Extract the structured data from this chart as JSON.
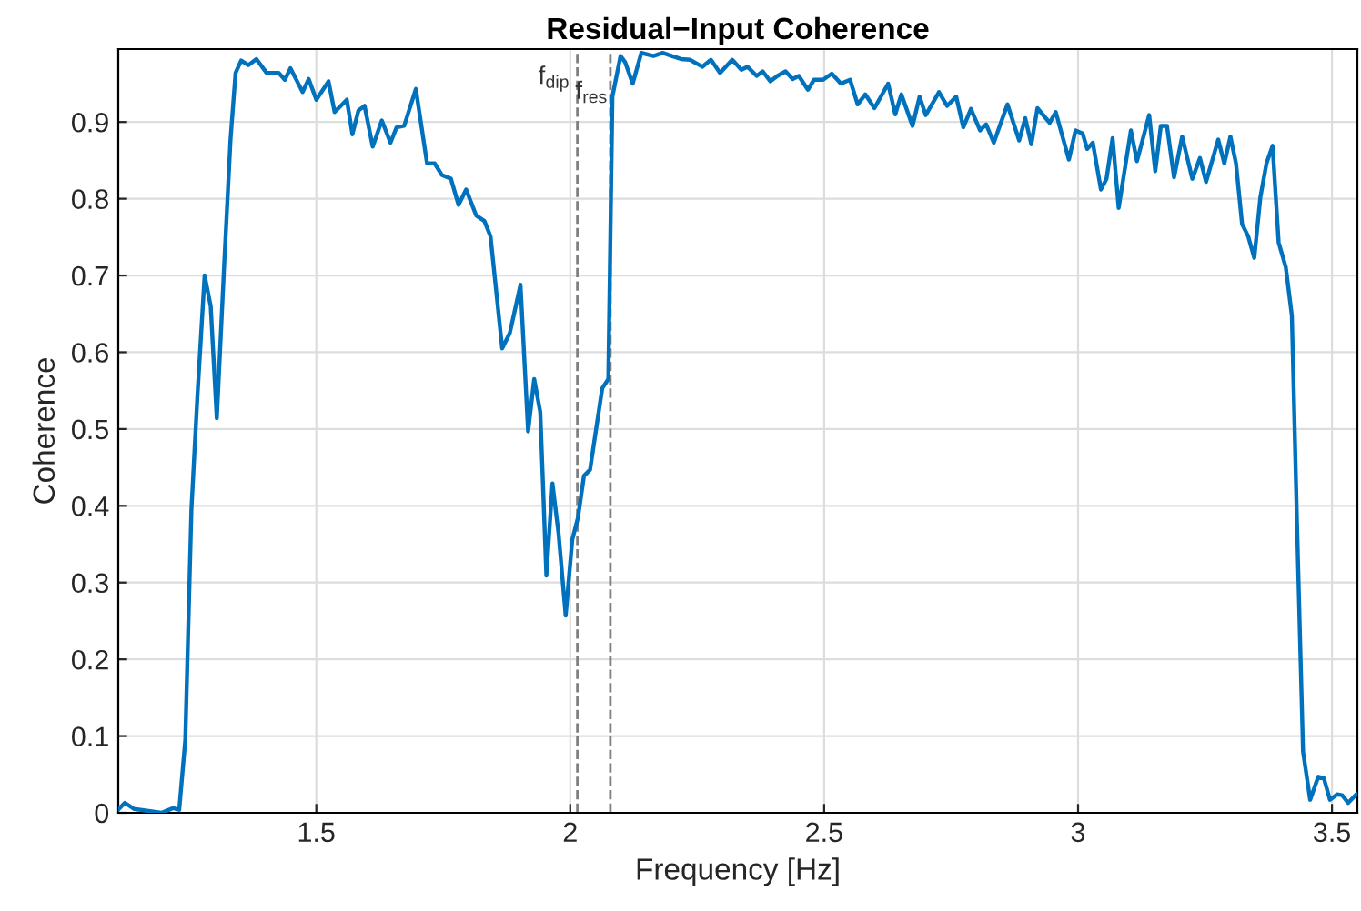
{
  "chart_data": {
    "type": "line",
    "title": "Residual−Input Coherence",
    "xlabel": "Frequency [Hz]",
    "ylabel": "Coherence",
    "xlim": [
      1.11,
      3.55
    ],
    "ylim": [
      0,
      0.995
    ],
    "xticks": [
      1.5,
      2,
      2.5,
      3,
      3.5
    ],
    "yticks": [
      0,
      0.1,
      0.2,
      0.3,
      0.4,
      0.5,
      0.6,
      0.7,
      0.8,
      0.9
    ],
    "grid": true,
    "line_style": "solid",
    "marker": "none",
    "ref_lines": [
      {
        "axis": "x",
        "value": 2.014,
        "label": "f$_{dip}$",
        "color": "#808080",
        "line_style": "dashed"
      },
      {
        "axis": "x",
        "value": 2.079,
        "label": "f$_{res}$",
        "color": "#808080",
        "line_style": "dashed"
      }
    ],
    "series": [
      {
        "color": "#0072bd",
        "x": [
          1.111,
          1.123,
          1.141,
          1.195,
          1.218,
          1.23,
          1.242,
          1.254,
          1.266,
          1.28,
          1.292,
          1.304,
          1.319,
          1.331,
          1.341,
          1.352,
          1.366,
          1.382,
          1.402,
          1.426,
          1.438,
          1.449,
          1.473,
          1.485,
          1.5,
          1.524,
          1.536,
          1.56,
          1.571,
          1.583,
          1.595,
          1.611,
          1.629,
          1.646,
          1.658,
          1.673,
          1.696,
          1.718,
          1.733,
          1.747,
          1.765,
          1.78,
          1.795,
          1.815,
          1.831,
          1.843,
          1.866,
          1.881,
          1.902,
          1.917,
          1.929,
          1.941,
          1.953,
          1.965,
          1.977,
          1.991,
          2.004,
          2.015,
          2.027,
          2.039,
          2.063,
          2.075,
          2.083,
          2.099,
          2.108,
          2.123,
          2.14,
          2.164,
          2.182,
          2.2,
          2.218,
          2.236,
          2.26,
          2.277,
          2.295,
          2.319,
          2.337,
          2.349,
          2.367,
          2.379,
          2.394,
          2.408,
          2.424,
          2.438,
          2.45,
          2.468,
          2.48,
          2.498,
          2.515,
          2.533,
          2.551,
          2.566,
          2.581,
          2.599,
          2.626,
          2.64,
          2.652,
          2.674,
          2.688,
          2.7,
          2.726,
          2.742,
          2.76,
          2.774,
          2.789,
          2.807,
          2.819,
          2.834,
          2.861,
          2.884,
          2.896,
          2.908,
          2.92,
          2.944,
          2.956,
          2.982,
          2.995,
          3.009,
          3.018,
          3.029,
          3.045,
          3.056,
          3.068,
          3.08,
          3.104,
          3.116,
          3.14,
          3.152,
          3.163,
          3.175,
          3.189,
          3.205,
          3.225,
          3.24,
          3.252,
          3.276,
          3.288,
          3.3,
          3.311,
          3.323,
          3.335,
          3.347,
          3.359,
          3.371,
          3.383,
          3.395,
          3.409,
          3.421,
          3.431,
          3.443,
          3.457,
          3.473,
          3.484,
          3.496,
          3.51,
          3.52,
          3.532,
          3.548
        ],
        "values": [
          0.005,
          0.013,
          0.005,
          0.0,
          0.006,
          0.004,
          0.095,
          0.395,
          0.545,
          0.7,
          0.66,
          0.514,
          0.72,
          0.877,
          0.964,
          0.98,
          0.974,
          0.982,
          0.964,
          0.964,
          0.955,
          0.97,
          0.939,
          0.956,
          0.929,
          0.953,
          0.913,
          0.929,
          0.884,
          0.915,
          0.921,
          0.868,
          0.902,
          0.873,
          0.893,
          0.895,
          0.943,
          0.846,
          0.846,
          0.831,
          0.826,
          0.792,
          0.812,
          0.778,
          0.771,
          0.751,
          0.605,
          0.625,
          0.688,
          0.497,
          0.565,
          0.522,
          0.309,
          0.429,
          0.364,
          0.257,
          0.356,
          0.384,
          0.439,
          0.447,
          0.553,
          0.565,
          0.933,
          0.986,
          0.978,
          0.95,
          0.99,
          0.986,
          0.99,
          0.986,
          0.982,
          0.981,
          0.972,
          0.981,
          0.964,
          0.981,
          0.968,
          0.972,
          0.96,
          0.966,
          0.953,
          0.96,
          0.966,
          0.956,
          0.96,
          0.942,
          0.955,
          0.955,
          0.963,
          0.95,
          0.955,
          0.923,
          0.936,
          0.918,
          0.95,
          0.91,
          0.936,
          0.895,
          0.933,
          0.909,
          0.939,
          0.921,
          0.933,
          0.893,
          0.917,
          0.889,
          0.897,
          0.873,
          0.923,
          0.876,
          0.905,
          0.871,
          0.918,
          0.899,
          0.913,
          0.851,
          0.889,
          0.885,
          0.865,
          0.873,
          0.812,
          0.826,
          0.879,
          0.788,
          0.889,
          0.849,
          0.909,
          0.836,
          0.895,
          0.895,
          0.828,
          0.881,
          0.826,
          0.853,
          0.822,
          0.877,
          0.846,
          0.881,
          0.846,
          0.767,
          0.751,
          0.723,
          0.802,
          0.846,
          0.869,
          0.743,
          0.711,
          0.648,
          0.38,
          0.08,
          0.017,
          0.047,
          0.045,
          0.017,
          0.024,
          0.023,
          0.013,
          0.024
        ]
      }
    ]
  }
}
